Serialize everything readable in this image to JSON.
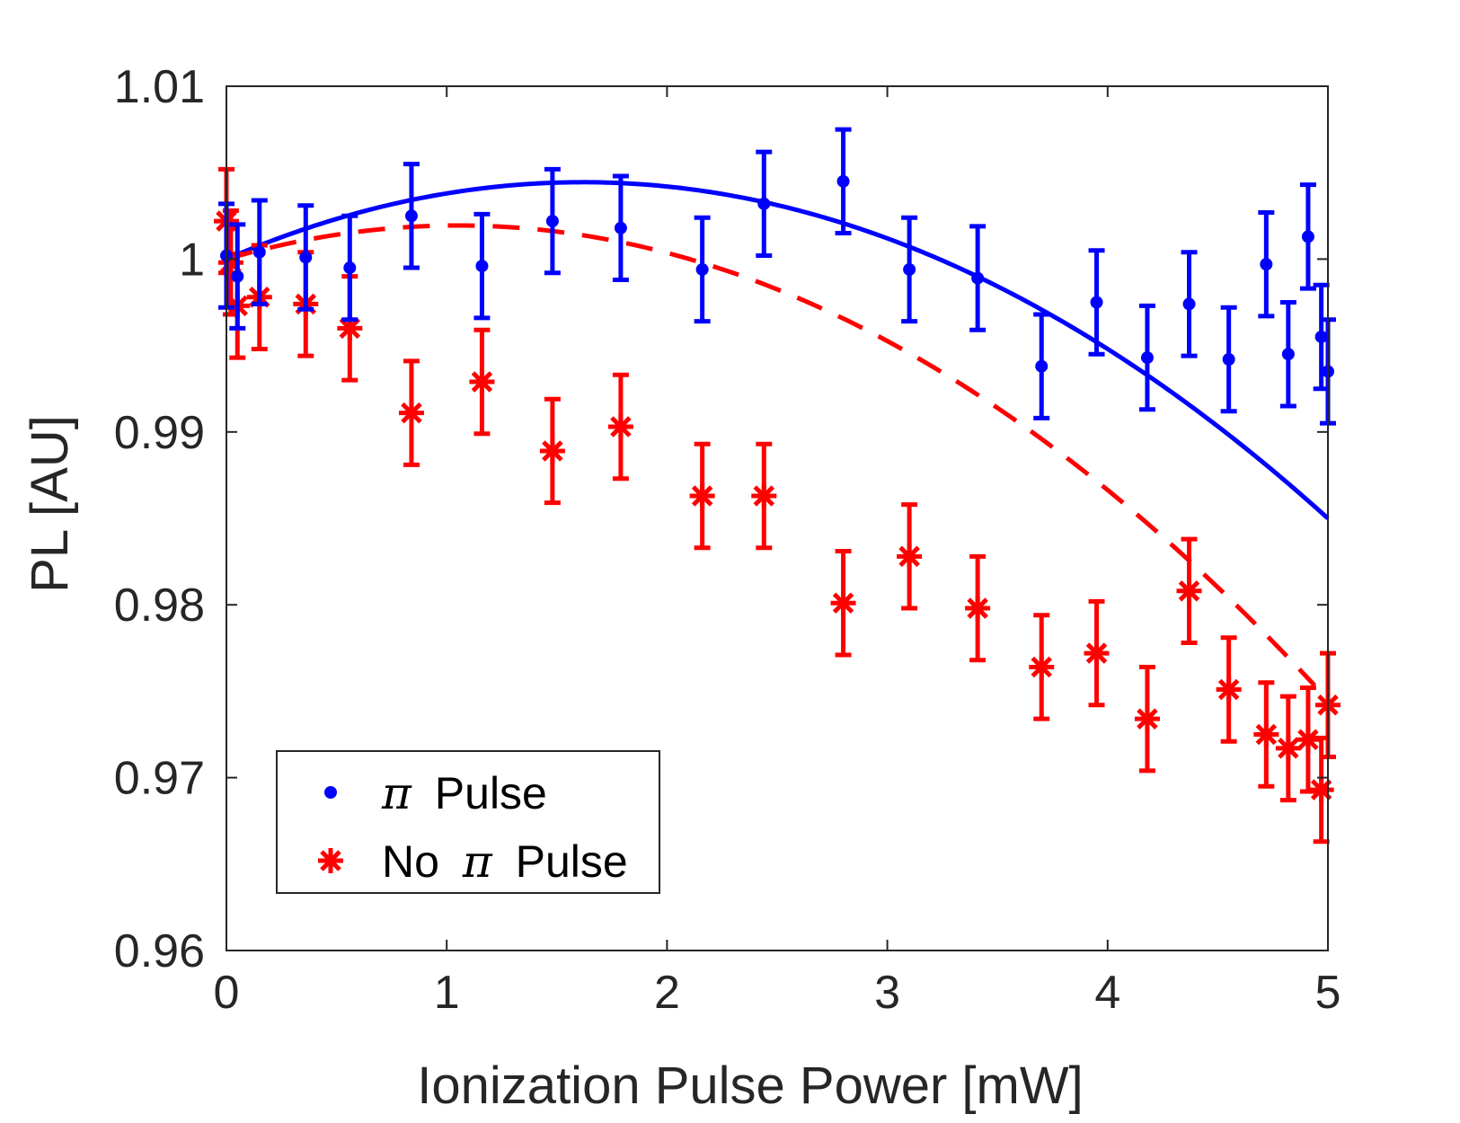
{
  "chart_data": {
    "type": "scatter",
    "xlabel": "Ionization Pulse Power [mW]",
    "ylabel": "PL [AU]",
    "xlim": [
      0,
      5
    ],
    "ylim": [
      0.96,
      1.01
    ],
    "x_ticks": [
      "0",
      "1",
      "2",
      "3",
      "4",
      "5"
    ],
    "y_ticks": [
      "0.96",
      "0.97",
      "0.98",
      "0.99",
      "1",
      "1.01"
    ],
    "grid": false,
    "legend_position": "bottom-left",
    "colors": {
      "pi_pulse": "#0000ff",
      "no_pi_pulse": "#ff0000",
      "axis": "#262626"
    },
    "series": [
      {
        "name": "Pi Pulse data",
        "legend": {
          "symbol": "π",
          "label": "Pulse"
        },
        "marker": "dot",
        "x": [
          0.0,
          0.05,
          0.15,
          0.36,
          0.56,
          0.84,
          1.16,
          1.48,
          1.79,
          2.16,
          2.44,
          2.8,
          3.1,
          3.41,
          3.7,
          3.95,
          4.18,
          4.37,
          4.55,
          4.72,
          4.82,
          4.91,
          4.97,
          5.0
        ],
        "y": [
          1.0002,
          0.999,
          1.0004,
          1.0001,
          0.9995,
          1.0025,
          0.9996,
          1.0022,
          1.0018,
          0.9994,
          1.0032,
          1.0045,
          0.9994,
          0.9989,
          0.9938,
          0.9975,
          0.9943,
          0.9974,
          0.9942,
          0.9997,
          0.9945,
          1.0013,
          0.9955,
          0.9935
        ],
        "err": 0.003
      },
      {
        "name": "No Pi Pulse data",
        "legend": {
          "prefix": "No",
          "symbol": "π",
          "label": "Pulse"
        },
        "marker": "asterisk",
        "x": [
          0.0,
          0.02,
          0.05,
          0.15,
          0.36,
          0.56,
          0.84,
          1.16,
          1.48,
          1.79,
          2.16,
          2.44,
          2.8,
          3.1,
          3.41,
          3.7,
          3.95,
          4.18,
          4.37,
          4.55,
          4.72,
          4.82,
          4.91,
          4.97,
          5.0
        ],
        "y": [
          1.0022,
          0.9998,
          0.9973,
          0.9978,
          0.9974,
          0.996,
          0.9911,
          0.9929,
          0.9889,
          0.9903,
          0.9863,
          0.9863,
          0.9801,
          0.9828,
          0.9798,
          0.9764,
          0.9772,
          0.9734,
          0.9808,
          0.9751,
          0.9725,
          0.9717,
          0.9722,
          0.9693,
          0.9742
        ],
        "err": 0.003
      },
      {
        "name": "Pi Pulse fit",
        "style": "solid",
        "function": "1 + a*x + b*x^2",
        "a": 0.0055,
        "b": -0.0017
      },
      {
        "name": "No Pi Pulse fit",
        "style": "dashed",
        "function": "1 + a*x + b*x^2",
        "a": 0.0037,
        "b": -0.00176,
        "x_max": 4.94
      }
    ]
  }
}
